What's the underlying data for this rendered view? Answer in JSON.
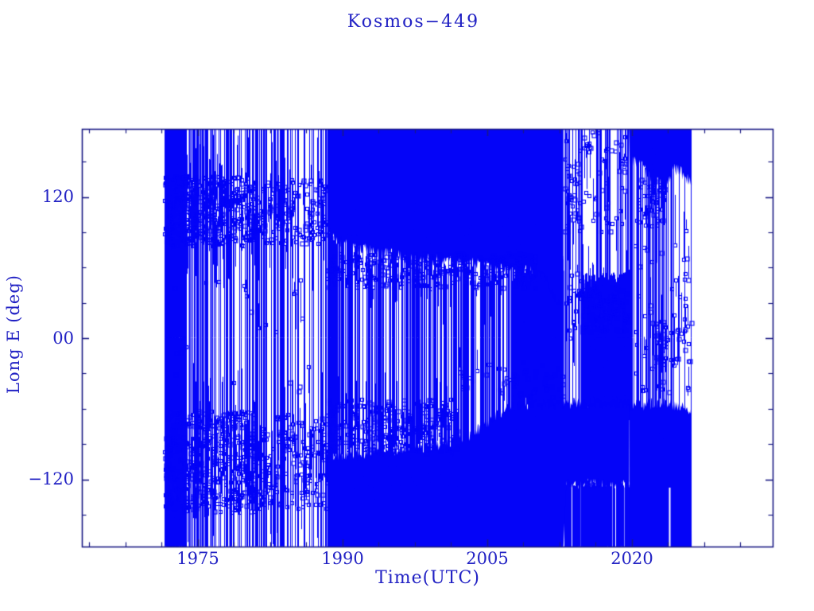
{
  "chart_data": {
    "type": "scatter",
    "title": "Kosmos−449",
    "xlabel": "Time(UTC)",
    "ylabel": "Long E (deg)",
    "x_ticks": [
      1975,
      1990,
      2005,
      2020
    ],
    "x_tick_labels": [
      "1975",
      "1990",
      "2005",
      "2020"
    ],
    "x_minor_step": 3.75,
    "y_ticks": [
      120,
      0,
      -120
    ],
    "y_tick_labels": [
      "120",
      "00",
      "−120"
    ],
    "y_minor_step": 30,
    "xlim": [
      1962.97,
      2034.6
    ],
    "ylim": [
      -177.1,
      177.8
    ],
    "x_data_range": [
      1971.55,
      2026.2
    ],
    "grid": false,
    "legend": "none",
    "marker": "open-square",
    "data_color": "#0404f8",
    "axis_color": "#1b1b85",
    "text_color": "#2222c4",
    "seed": 42,
    "summary": "Geographic longitude (deg E) of satellite Kosmos-449 versus time; longitude wraps at ±180 producing full-height vertical lines; librating/drift clusters near +110 and -110 deg in 1972-1988, solid wrap bands above +65 and below -95 deg in 1989-2013, dense drift mass between +45 and -125 deg in 2015-2019.5, and bands above +130 and below -55 deg in 2020-2026.",
    "render_spec": {
      "layers": [
        {
          "type": "columns",
          "t0": 1971.55,
          "t1": 1973.8,
          "perYear": 45,
          "lon0": -177,
          "lon1": 178
        },
        {
          "type": "columns",
          "t0": 1973.8,
          "t1": 1988.4,
          "perYear": 7,
          "lon0": -177,
          "lon1": 178
        },
        {
          "type": "columns",
          "t0": 1988.4,
          "t1": 1991.8,
          "perYear": 14,
          "lon0": -100,
          "lon1": 83,
          "jit": 8
        },
        {
          "type": "columns",
          "t0": 1988.4,
          "t1": 2012.9,
          "perYear": 5,
          "lon0": -177,
          "lon1": 178
        },
        {
          "type": "columns",
          "t0": 1991.8,
          "t1": 2007.5,
          "perYear": 5,
          "lon0": -95,
          "lon1": 65,
          "jit": 10
        },
        {
          "type": "columns",
          "t0": 2007.5,
          "t1": 2012.9,
          "perYear": 40,
          "lon0": -58,
          "lon1": 58,
          "jit": 12
        },
        {
          "type": "columns",
          "t0": 2013.0,
          "t1": 2015.0,
          "perYear": 7,
          "lon0": -177,
          "lon1": 178
        },
        {
          "type": "columns",
          "t0": 2013.0,
          "t1": 2019.7,
          "perYear": 18,
          "lon0": -178,
          "lon1": -123,
          "jit": 5
        },
        {
          "type": "columns",
          "t0": 2014.8,
          "t1": 2019.7,
          "perYear": 65,
          "lon0": -60,
          "lon1": 45,
          "jit": 11
        },
        {
          "type": "columns",
          "t0": 2015.6,
          "t1": 2019.7,
          "perYear": 5,
          "lon0": -177,
          "lon1": 178
        },
        {
          "type": "columns",
          "t0": 2019.5,
          "t1": 2020.2,
          "perYear": 16,
          "lon0": -177,
          "lon1": 178
        },
        {
          "type": "columns",
          "t0": 2020.2,
          "t1": 2026.2,
          "perYear": 6,
          "lon0": -177,
          "lon1": 178
        },
        {
          "type": "band",
          "jit": 5,
          "top": [
            [
              1988.4,
              178
            ],
            [
              2012.9,
              178
            ]
          ],
          "bottom": [
            [
              1988.4,
              86
            ],
            [
              1993,
              74
            ],
            [
              1998,
              68
            ],
            [
              2003,
              64
            ],
            [
              2008,
              59
            ],
            [
              2010.8,
              55
            ],
            [
              2011.9,
              36
            ],
            [
              2012.9,
              26
            ]
          ]
        },
        {
          "type": "band",
          "jit": 5,
          "top": [
            [
              1988.4,
              -102
            ],
            [
              1994,
              -97
            ],
            [
              1999,
              -92
            ],
            [
              2003,
              -84
            ],
            [
              2006,
              -66
            ],
            [
              2008,
              -56
            ],
            [
              2019.7,
              -55
            ]
          ],
          "bottom": [
            [
              1988.4,
              -178
            ],
            [
              2012.9,
              -178
            ],
            [
              2013.2,
              -124
            ],
            [
              2019.7,
              -124
            ]
          ]
        },
        {
          "type": "band",
          "jit": 6,
          "top": [
            [
              2019.7,
              178
            ],
            [
              2026.2,
              178
            ]
          ],
          "bottom": [
            [
              2019.7,
              152
            ],
            [
              2021.2,
              144
            ],
            [
              2022.5,
              131
            ],
            [
              2023.8,
              131
            ],
            [
              2024.3,
              143
            ],
            [
              2025.3,
              140
            ],
            [
              2026.2,
              132
            ]
          ]
        },
        {
          "type": "band",
          "jit": 5,
          "top": [
            [
              2019.7,
              -58
            ],
            [
              2023,
              -55
            ],
            [
              2026.2,
              -60
            ]
          ],
          "bottom": [
            [
              2019.7,
              -178
            ],
            [
              2026.2,
              -178
            ]
          ]
        },
        {
          "type": "gapline",
          "t": 2023.9,
          "lon0": -178,
          "lon1": -127,
          "w": 2
        },
        {
          "type": "scatter",
          "t0": 1971.55,
          "t1": 1981,
          "lon0": 78,
          "lon1": 138,
          "perYear": 50
        },
        {
          "type": "scatter",
          "t0": 1981,
          "t1": 1988.4,
          "lon0": 80,
          "lon1": 135,
          "perYear": 22
        },
        {
          "type": "scatter",
          "t0": 1971.55,
          "t1": 1981,
          "lon0": -148,
          "lon1": -62,
          "perYear": 50
        },
        {
          "type": "scatter",
          "t0": 1981,
          "t1": 1988.4,
          "lon0": -145,
          "lon1": -65,
          "perYear": 22
        },
        {
          "type": "scatter",
          "t0": 1971.55,
          "t1": 1988.4,
          "lon0": -45,
          "lon1": 50,
          "perYear": 1.5
        },
        {
          "type": "scatter",
          "t0": 1988.4,
          "t1": 2010,
          "lon0": 42,
          "lon1": 72,
          "perYear": 14
        },
        {
          "type": "scatter",
          "t0": 1988.4,
          "t1": 2002,
          "lon0": -98,
          "lon1": -52,
          "perYear": 20
        },
        {
          "type": "scatter",
          "t0": 2002,
          "t1": 2012.9,
          "lon0": -50,
          "lon1": -20,
          "perYear": 5
        },
        {
          "type": "scatter",
          "t0": 2013.0,
          "t1": 2015.0,
          "lon0": -5,
          "lon1": 55,
          "perYear": 12
        },
        {
          "type": "scatter",
          "t0": 2013.0,
          "t1": 2019.5,
          "lon0": 90,
          "lon1": 175,
          "perYear": 11
        },
        {
          "type": "scatter",
          "t0": 2013.2,
          "t1": 2014.6,
          "lon0": 100,
          "lon1": 150,
          "perYear": 14
        },
        {
          "type": "scatter",
          "t0": 2014.8,
          "t1": 2019.7,
          "lon0": 5,
          "lon1": 45,
          "perYear": 22
        },
        {
          "type": "scatter",
          "t0": 2020.5,
          "t1": 2023.5,
          "lon0": 95,
          "lon1": 135,
          "perYear": 18
        },
        {
          "type": "scatter",
          "t0": 2020.3,
          "t1": 2026.2,
          "lon0": -50,
          "lon1": 95,
          "perYear": 8
        },
        {
          "type": "scatter",
          "t0": 2022.4,
          "t1": 2023.6,
          "lon0": -45,
          "lon1": 15,
          "perYear": 24
        },
        {
          "type": "scatter",
          "t0": 2024.5,
          "t1": 2026.0,
          "lon0": -20,
          "lon1": 60,
          "perYear": 10
        }
      ]
    }
  }
}
